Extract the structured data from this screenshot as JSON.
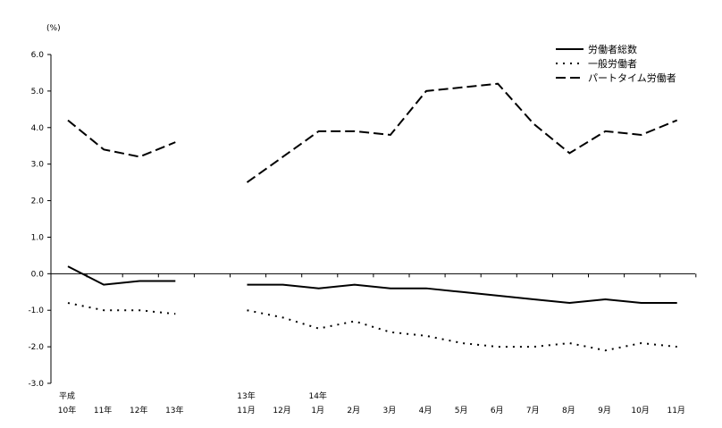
{
  "chart_data": {
    "type": "line",
    "unit_label": "(%)",
    "ylim": [
      -3.0,
      6.0
    ],
    "y_ticks": [
      "6.0",
      "5.0",
      "4.0",
      "3.0",
      "2.0",
      "1.0",
      "0.0",
      "-1.0",
      "-2.0",
      "-3.0"
    ],
    "y_tick_values": [
      6,
      5,
      4,
      3,
      2,
      1,
      0,
      -1,
      -2,
      -3
    ],
    "categories": [
      {
        "top": "平成",
        "bottom": "10年"
      },
      {
        "top": "",
        "bottom": "11年"
      },
      {
        "top": "",
        "bottom": "12年"
      },
      {
        "top": "",
        "bottom": "13年"
      },
      {
        "top": "",
        "bottom": ""
      },
      {
        "top": "13年",
        "bottom": "11月"
      },
      {
        "top": "",
        "bottom": "12月"
      },
      {
        "top": "14年",
        "bottom": "1月"
      },
      {
        "top": "",
        "bottom": "2月"
      },
      {
        "top": "",
        "bottom": "3月"
      },
      {
        "top": "",
        "bottom": "4月"
      },
      {
        "top": "",
        "bottom": "5月"
      },
      {
        "top": "",
        "bottom": "6月"
      },
      {
        "top": "",
        "bottom": "7月"
      },
      {
        "top": "",
        "bottom": "8月"
      },
      {
        "top": "",
        "bottom": "9月"
      },
      {
        "top": "",
        "bottom": "10月"
      },
      {
        "top": "",
        "bottom": "11月"
      }
    ],
    "series": [
      {
        "name": "労働者総数",
        "style": "solid",
        "segments": [
          [
            0.2,
            -0.3,
            -0.2,
            -0.2
          ],
          [
            -0.3,
            -0.3,
            -0.4,
            -0.3,
            -0.4,
            -0.4,
            -0.5,
            -0.6,
            -0.7,
            -0.8,
            -0.7,
            -0.8,
            -0.8
          ]
        ]
      },
      {
        "name": "一般労働者",
        "style": "dotted",
        "segments": [
          [
            -0.8,
            -1.0,
            -1.0,
            -1.1
          ],
          [
            -1.0,
            -1.2,
            -1.5,
            -1.3,
            -1.6,
            -1.7,
            -1.9,
            -2.0,
            -2.0,
            -1.9,
            -2.1,
            -1.9,
            -2.0
          ]
        ]
      },
      {
        "name": "パートタイム労働者",
        "style": "dashed",
        "segments": [
          [
            4.2,
            3.4,
            3.2,
            3.6
          ],
          [
            2.5,
            3.2,
            3.9,
            3.9,
            3.8,
            5.0,
            5.1,
            5.2,
            4.1,
            3.3,
            3.9,
            3.8,
            4.2
          ]
        ]
      }
    ],
    "legend_position": "top-right",
    "grid": false
  }
}
